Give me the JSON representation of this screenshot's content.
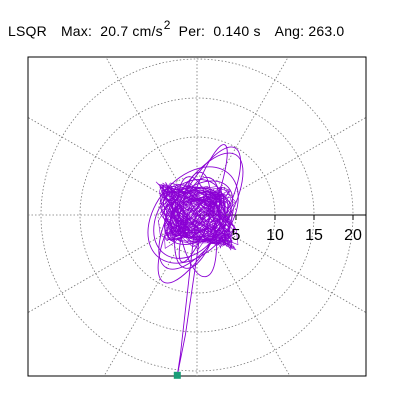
{
  "header": {
    "component": "LSQR",
    "max_label": "Max:",
    "max_value": "20.7",
    "max_unit": "cm/s",
    "max_unit_exp": "2",
    "per_label": "Per:",
    "per_value": "0.140 s",
    "ang_label": "Ang:",
    "ang_value": "263.0"
  },
  "chart_data": {
    "type": "polar-orbit",
    "rmax": 22,
    "ring_values": [
      5,
      10,
      15,
      20
    ],
    "tick_labels": [
      "5",
      "10",
      "15",
      "20"
    ],
    "spoke_step_deg": 30,
    "grid": true,
    "trace_color": "#8a00d4",
    "marker_color": "#1a9c78",
    "max_amplitude": 20.7,
    "max_angle_deg": 263.0,
    "end_marker": {
      "amplitude": 20.7,
      "angle_deg": 263.0
    },
    "orbit_ellipses": [
      {
        "a": 19.5,
        "b": 6.0,
        "rot_deg": 62,
        "cx": 0.3,
        "cy": 0.0
      },
      {
        "a": 17.0,
        "b": 7.0,
        "rot_deg": 58,
        "cx": 0.5,
        "cy": 0.5
      },
      {
        "a": 14.0,
        "b": 9.5,
        "rot_deg": 50,
        "cx": -0.5,
        "cy": 0.0
      },
      {
        "a": 12.0,
        "b": 5.0,
        "rot_deg": 75,
        "cx": 0.0,
        "cy": -1.0
      },
      {
        "a": 10.0,
        "b": 6.5,
        "rot_deg": 40,
        "cx": 0.2,
        "cy": 0.3
      },
      {
        "a": 9.0,
        "b": 3.5,
        "rot_deg": 85,
        "cx": 0.0,
        "cy": 1.0
      },
      {
        "a": 8.0,
        "b": 5.5,
        "rot_deg": 20,
        "cx": 0.5,
        "cy": 0.0
      },
      {
        "a": 16.0,
        "b": 3.0,
        "rot_deg": 70,
        "cx": 0.8,
        "cy": 1.5
      },
      {
        "a": 11.0,
        "b": 8.0,
        "rot_deg": 55,
        "cx": -1.0,
        "cy": -0.5
      },
      {
        "a": 6.0,
        "b": 4.0,
        "rot_deg": 0,
        "cx": 0.0,
        "cy": 0.0
      },
      {
        "a": 13.0,
        "b": 4.5,
        "rot_deg": 100,
        "cx": 0.0,
        "cy": -1.5
      },
      {
        "a": 7.5,
        "b": 6.0,
        "rot_deg": 135,
        "cx": 0.3,
        "cy": 0.2
      }
    ]
  }
}
